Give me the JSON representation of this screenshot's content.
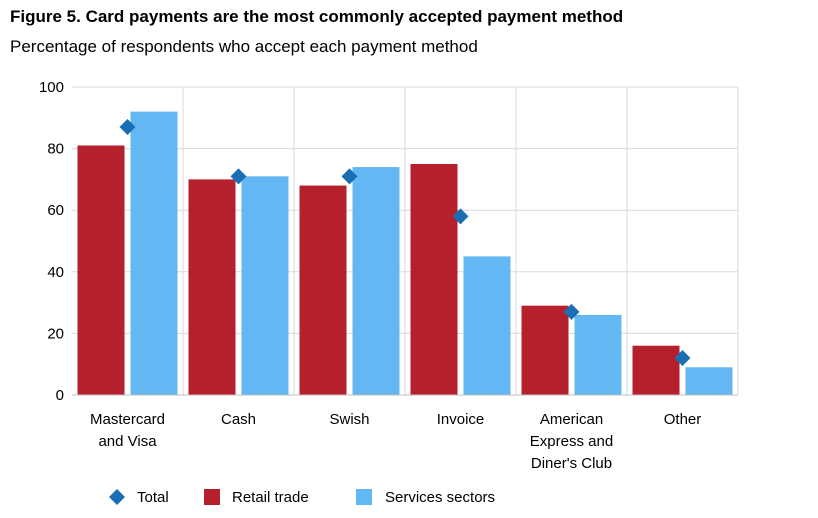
{
  "chart_data": {
    "type": "bar",
    "title": "Figure 5. Card payments are the most commonly accepted payment method",
    "subtitle": "Percentage of respondents who accept each payment method",
    "categories": [
      [
        "Mastercard",
        "and Visa"
      ],
      [
        "Cash"
      ],
      [
        "Swish"
      ],
      [
        "Invoice"
      ],
      [
        "American",
        "Express and",
        "Diner's Club"
      ],
      [
        "Other"
      ]
    ],
    "series": [
      {
        "name": "Retail trade",
        "kind": "bar",
        "color": "#b61f2c",
        "values": [
          81,
          70,
          68,
          75,
          29,
          16
        ]
      },
      {
        "name": "Services sectors",
        "kind": "bar",
        "color": "#63b7f2",
        "values": [
          92,
          71,
          74,
          45,
          26,
          9
        ]
      },
      {
        "name": "Total",
        "kind": "marker",
        "marker": "diamond",
        "color": "#1a6fb4",
        "values": [
          87,
          71,
          71,
          58,
          27,
          12
        ]
      }
    ],
    "ylim": [
      0,
      100
    ],
    "yticks": [
      "0",
      "20",
      "40",
      "60",
      "80",
      "100"
    ],
    "grid": true,
    "legend": {
      "placement": "bottom",
      "order": [
        "Total",
        "Retail trade",
        "Services sectors"
      ]
    }
  }
}
